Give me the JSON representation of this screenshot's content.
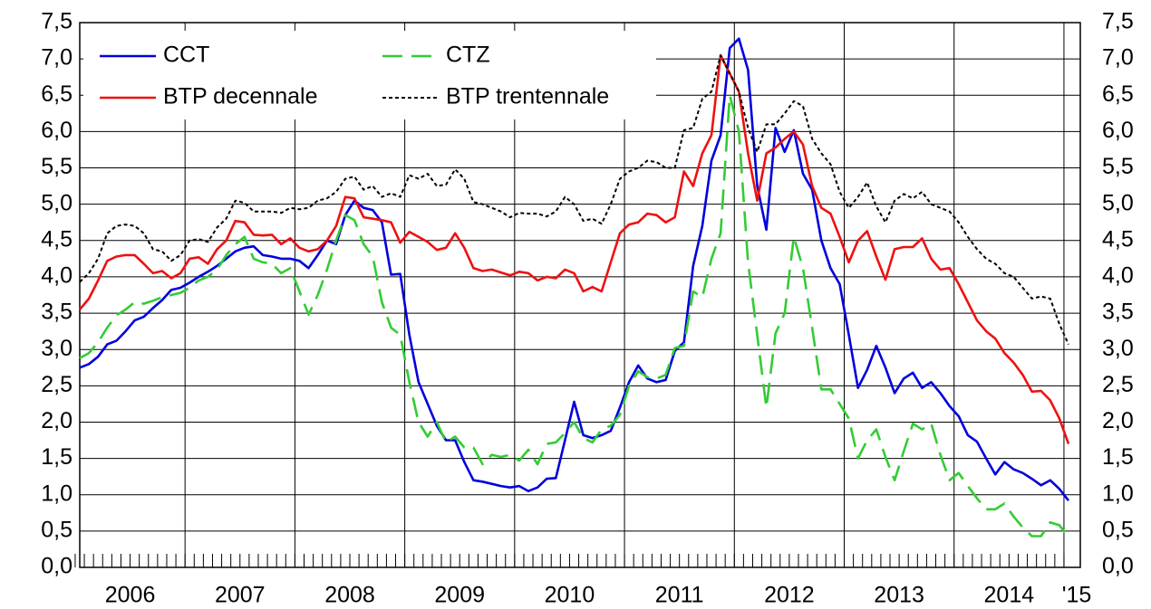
{
  "chart_data": {
    "type": "line",
    "x": [
      "2006-01",
      "2006-02",
      "2006-03",
      "2006-04",
      "2006-05",
      "2006-06",
      "2006-07",
      "2006-08",
      "2006-09",
      "2006-10",
      "2006-11",
      "2006-12",
      "2007-01",
      "2007-02",
      "2007-03",
      "2007-04",
      "2007-05",
      "2007-06",
      "2007-07",
      "2007-08",
      "2007-09",
      "2007-10",
      "2007-11",
      "2007-12",
      "2008-01",
      "2008-02",
      "2008-03",
      "2008-04",
      "2008-05",
      "2008-06",
      "2008-07",
      "2008-08",
      "2008-09",
      "2008-10",
      "2008-11",
      "2008-12",
      "2009-01",
      "2009-02",
      "2009-03",
      "2009-04",
      "2009-05",
      "2009-06",
      "2009-07",
      "2009-08",
      "2009-09",
      "2009-10",
      "2009-11",
      "2009-12",
      "2010-01",
      "2010-02",
      "2010-03",
      "2010-04",
      "2010-05",
      "2010-06",
      "2010-07",
      "2010-08",
      "2010-09",
      "2010-10",
      "2010-11",
      "2010-12",
      "2011-01",
      "2011-02",
      "2011-03",
      "2011-04",
      "2011-05",
      "2011-06",
      "2011-07",
      "2011-08",
      "2011-09",
      "2011-10",
      "2011-11",
      "2011-12",
      "2012-01",
      "2012-02",
      "2012-03",
      "2012-04",
      "2012-05",
      "2012-06",
      "2012-07",
      "2012-08",
      "2012-09",
      "2012-10",
      "2012-11",
      "2012-12",
      "2013-01",
      "2013-02",
      "2013-03",
      "2013-04",
      "2013-05",
      "2013-06",
      "2013-07",
      "2013-08",
      "2013-09",
      "2013-10",
      "2013-11",
      "2013-12",
      "2014-01",
      "2014-02",
      "2014-03",
      "2014-04",
      "2014-05",
      "2014-06",
      "2014-07",
      "2014-08",
      "2014-09",
      "2014-10",
      "2014-11",
      "2014-12",
      "2015-01"
    ],
    "xlim": [
      "2006-01",
      "2015-01"
    ],
    "xticks": [
      2006,
      2007,
      2008,
      2009,
      2010,
      2011,
      2012,
      2013,
      2014,
      {
        "value": 2015,
        "label": "'15"
      }
    ],
    "ylim": [
      0,
      7.5
    ],
    "yticks": [
      {
        "value": 0,
        "label": "0,0"
      },
      {
        "value": 0.5,
        "label": "0,5"
      },
      {
        "value": 1,
        "label": "1,0"
      },
      {
        "value": 1.5,
        "label": "1,5"
      },
      {
        "value": 2,
        "label": "2,0"
      },
      {
        "value": 2.5,
        "label": "2,5"
      },
      {
        "value": 3,
        "label": "3,0"
      },
      {
        "value": 3.5,
        "label": "3,5"
      },
      {
        "value": 4,
        "label": "4,0"
      },
      {
        "value": 4.5,
        "label": "4,5"
      },
      {
        "value": 5,
        "label": "5,0"
      },
      {
        "value": 5.5,
        "label": "5,5"
      },
      {
        "value": 6,
        "label": "6,0"
      },
      {
        "value": 6.5,
        "label": "6,5"
      },
      {
        "value": 7,
        "label": "7,0"
      },
      {
        "value": 7.5,
        "label": "7,5"
      }
    ],
    "grid": true,
    "legend": "upper left",
    "series": [
      {
        "name": "CCT",
        "color": "#0000dd",
        "linestyle": "solid",
        "values": [
          2.75,
          2.8,
          2.9,
          3.07,
          3.12,
          3.25,
          3.4,
          3.45,
          3.57,
          3.68,
          3.82,
          3.85,
          3.92,
          4.0,
          4.07,
          4.15,
          4.25,
          4.35,
          4.4,
          4.42,
          4.3,
          4.28,
          4.25,
          4.25,
          4.22,
          4.12,
          4.3,
          4.5,
          4.45,
          4.85,
          5.05,
          4.95,
          4.92,
          4.75,
          4.03,
          4.04,
          3.2,
          2.55,
          2.25,
          1.95,
          1.75,
          1.75,
          1.45,
          1.2,
          1.18,
          1.15,
          1.12,
          1.1,
          1.12,
          1.05,
          1.1,
          1.22,
          1.23,
          1.75,
          2.28,
          1.82,
          1.78,
          1.82,
          1.88,
          2.2,
          2.55,
          2.78,
          2.6,
          2.55,
          2.58,
          2.98,
          3.1,
          4.15,
          4.7,
          5.6,
          5.95,
          7.15,
          7.28,
          6.85,
          5.25,
          4.65,
          6.05,
          5.72,
          6.02,
          5.42,
          5.2,
          4.5,
          4.12,
          3.9,
          3.2,
          2.47,
          2.72,
          3.05,
          2.75,
          2.4,
          2.6,
          2.68,
          2.47,
          2.55,
          2.4,
          2.22,
          2.08,
          1.82,
          1.73,
          1.5,
          1.28,
          1.45,
          1.35,
          1.3,
          1.22,
          1.13,
          1.2,
          1.08,
          0.92
        ]
      },
      {
        "name": "CTZ",
        "color": "#33cc33",
        "linestyle": "dashed",
        "values": [
          2.88,
          2.95,
          3.1,
          3.3,
          3.47,
          3.55,
          3.65,
          3.63,
          3.67,
          3.72,
          3.75,
          3.78,
          3.85,
          3.95,
          4.0,
          4.1,
          4.3,
          4.45,
          4.55,
          4.25,
          4.2,
          4.18,
          4.05,
          4.12,
          3.8,
          3.48,
          3.75,
          4.1,
          4.5,
          4.85,
          4.78,
          4.45,
          4.28,
          3.65,
          3.3,
          3.2,
          2.55,
          2.0,
          1.8,
          2.0,
          1.72,
          1.8,
          1.65,
          1.65,
          1.42,
          1.55,
          1.52,
          1.55,
          1.47,
          1.62,
          1.42,
          1.7,
          1.72,
          1.85,
          2.0,
          1.78,
          1.72,
          1.9,
          1.95,
          2.1,
          2.5,
          2.7,
          2.62,
          2.6,
          2.65,
          3.02,
          3.05,
          3.8,
          3.72,
          4.25,
          4.6,
          6.5,
          6.0,
          4.2,
          3.2,
          2.2,
          3.22,
          3.5,
          4.55,
          4.12,
          3.3,
          2.45,
          2.45,
          2.25,
          2.05,
          1.5,
          1.75,
          1.9,
          1.52,
          1.2,
          1.6,
          1.98,
          1.9,
          1.98,
          1.55,
          1.2,
          1.3,
          1.12,
          0.95,
          0.8,
          0.8,
          0.88,
          0.7,
          0.55,
          0.43,
          0.43,
          0.62,
          0.58,
          0.42
        ]
      },
      {
        "name": "BTP decennale",
        "color": "#ee1111",
        "linestyle": "solid",
        "values": [
          3.55,
          3.7,
          3.95,
          4.22,
          4.28,
          4.3,
          4.3,
          4.18,
          4.05,
          4.08,
          3.98,
          4.05,
          4.25,
          4.27,
          4.18,
          4.38,
          4.5,
          4.77,
          4.75,
          4.58,
          4.57,
          4.58,
          4.45,
          4.53,
          4.4,
          4.35,
          4.38,
          4.5,
          4.7,
          5.1,
          5.08,
          4.82,
          4.8,
          4.78,
          4.75,
          4.47,
          4.62,
          4.55,
          4.48,
          4.37,
          4.4,
          4.6,
          4.4,
          4.12,
          4.08,
          4.1,
          4.06,
          4.02,
          4.07,
          4.05,
          3.95,
          4.0,
          3.98,
          4.1,
          4.05,
          3.8,
          3.86,
          3.8,
          4.2,
          4.6,
          4.72,
          4.75,
          4.87,
          4.85,
          4.75,
          4.82,
          5.45,
          5.25,
          5.7,
          5.95,
          7.05,
          6.8,
          6.55,
          5.7,
          5.05,
          5.7,
          5.78,
          5.9,
          6.0,
          5.82,
          5.25,
          4.95,
          4.87,
          4.55,
          4.2,
          4.5,
          4.63,
          4.28,
          3.96,
          4.38,
          4.41,
          4.41,
          4.53,
          4.25,
          4.1,
          4.12,
          3.9,
          3.65,
          3.4,
          3.25,
          3.15,
          2.95,
          2.82,
          2.65,
          2.42,
          2.43,
          2.3,
          2.05,
          1.7
        ]
      },
      {
        "name": "BTP trentennale",
        "color": "#000000",
        "linestyle": "dotted",
        "values": [
          3.93,
          4.05,
          4.25,
          4.6,
          4.7,
          4.72,
          4.7,
          4.6,
          4.38,
          4.35,
          4.22,
          4.3,
          4.5,
          4.52,
          4.48,
          4.68,
          4.8,
          5.05,
          5.02,
          4.9,
          4.9,
          4.9,
          4.88,
          4.95,
          4.93,
          4.95,
          5.05,
          5.08,
          5.17,
          5.35,
          5.38,
          5.2,
          5.25,
          5.1,
          5.15,
          5.1,
          5.4,
          5.35,
          5.42,
          5.25,
          5.27,
          5.48,
          5.35,
          5.03,
          5.0,
          4.95,
          4.9,
          4.82,
          4.88,
          4.87,
          4.87,
          4.83,
          4.9,
          5.1,
          5.0,
          4.77,
          4.8,
          4.73,
          5.0,
          5.35,
          5.45,
          5.5,
          5.6,
          5.58,
          5.5,
          5.5,
          6.02,
          6.05,
          6.45,
          6.55,
          7.05,
          6.8,
          6.55,
          6.05,
          5.72,
          6.1,
          6.1,
          6.25,
          6.42,
          6.35,
          5.9,
          5.7,
          5.55,
          5.17,
          4.95,
          5.1,
          5.3,
          4.97,
          4.75,
          5.05,
          5.14,
          5.08,
          5.17,
          5.0,
          4.95,
          4.9,
          4.75,
          4.55,
          4.38,
          4.25,
          4.18,
          4.05,
          4.0,
          3.85,
          3.7,
          3.73,
          3.7,
          3.35,
          3.07
        ]
      }
    ]
  }
}
